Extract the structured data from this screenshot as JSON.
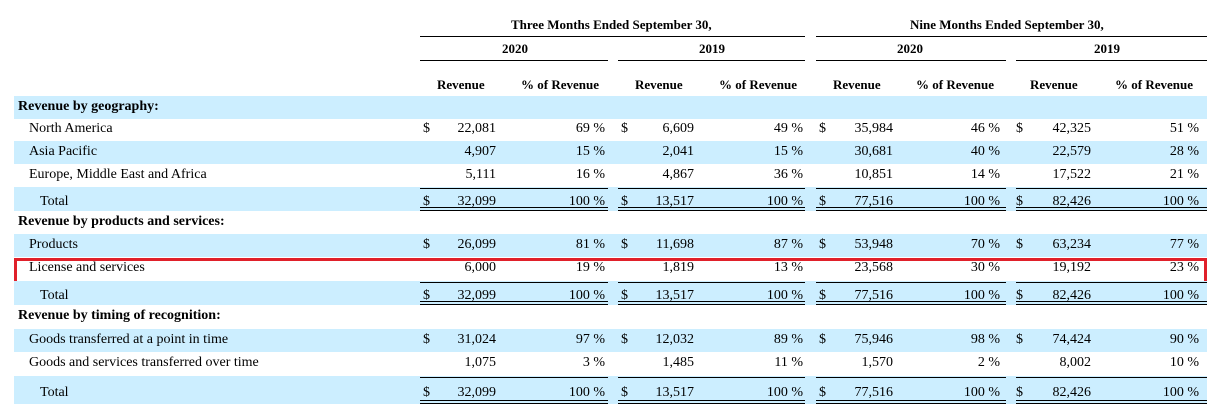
{
  "header": {
    "period_three": "Three Months Ended September 30,",
    "period_nine": "Nine Months Ended September 30,",
    "years": [
      "2020",
      "2019",
      "2020",
      "2019"
    ],
    "col_revenue": "Revenue",
    "col_pct": "% of Revenue"
  },
  "rows": [
    {
      "type": "section",
      "label": "Revenue by geography:"
    },
    {
      "type": "data",
      "label": "North America",
      "cells": [
        "22,081",
        "69 %",
        "6,609",
        "49 %",
        "35,984",
        "46 %",
        "42,325",
        "51 %"
      ],
      "dollar": true
    },
    {
      "type": "data",
      "label": "Asia Pacific",
      "cells": [
        "4,907",
        "15 %",
        "2,041",
        "15 %",
        "30,681",
        "40 %",
        "22,579",
        "28 %"
      ],
      "dollar": false
    },
    {
      "type": "data",
      "label": "Europe, Middle East and Africa",
      "cells": [
        "5,111",
        "16 %",
        "4,867",
        "36 %",
        "10,851",
        "14 %",
        "17,522",
        "21 %"
      ],
      "dollar": false
    },
    {
      "type": "total",
      "label": "Total",
      "cells": [
        "32,099",
        "100 %",
        "13,517",
        "100 %",
        "77,516",
        "100 %",
        "82,426",
        "100 %"
      ],
      "dollar": true
    },
    {
      "type": "section",
      "label": "Revenue by products and services:"
    },
    {
      "type": "data",
      "label": "Products",
      "cells": [
        "26,099",
        "81 %",
        "11,698",
        "87 %",
        "53,948",
        "70 %",
        "63,234",
        "77 %"
      ],
      "dollar": true
    },
    {
      "type": "data",
      "label": "License and services",
      "cells": [
        "6,000",
        "19 %",
        "1,819",
        "13 %",
        "23,568",
        "30 %",
        "19,192",
        "23 %"
      ],
      "dollar": false,
      "highlight": true
    },
    {
      "type": "total",
      "label": "Total",
      "cells": [
        "32,099",
        "100 %",
        "13,517",
        "100 %",
        "77,516",
        "100 %",
        "82,426",
        "100 %"
      ],
      "dollar": true
    },
    {
      "type": "section",
      "label": "Revenue by timing of recognition:"
    },
    {
      "type": "data",
      "label": "Goods transferred at a point in time",
      "cells": [
        "31,024",
        "97 %",
        "12,032",
        "89 %",
        "75,946",
        "98 %",
        "74,424",
        "90 %"
      ],
      "dollar": true
    },
    {
      "type": "data",
      "label": "Goods and services transferred over time",
      "cells": [
        "1,075",
        "3 %",
        "1,485",
        "11 %",
        "1,570",
        "2 %",
        "8,002",
        "10 %"
      ],
      "dollar": false
    },
    {
      "type": "total",
      "label": "Total",
      "cells": [
        "32,099",
        "100 %",
        "13,517",
        "100 %",
        "77,516",
        "100 %",
        "82,426",
        "100 %"
      ],
      "dollar": true
    }
  ],
  "dollar_sign": "$",
  "colors": {
    "band": "#cceeff",
    "highlight": "#e0202a"
  }
}
